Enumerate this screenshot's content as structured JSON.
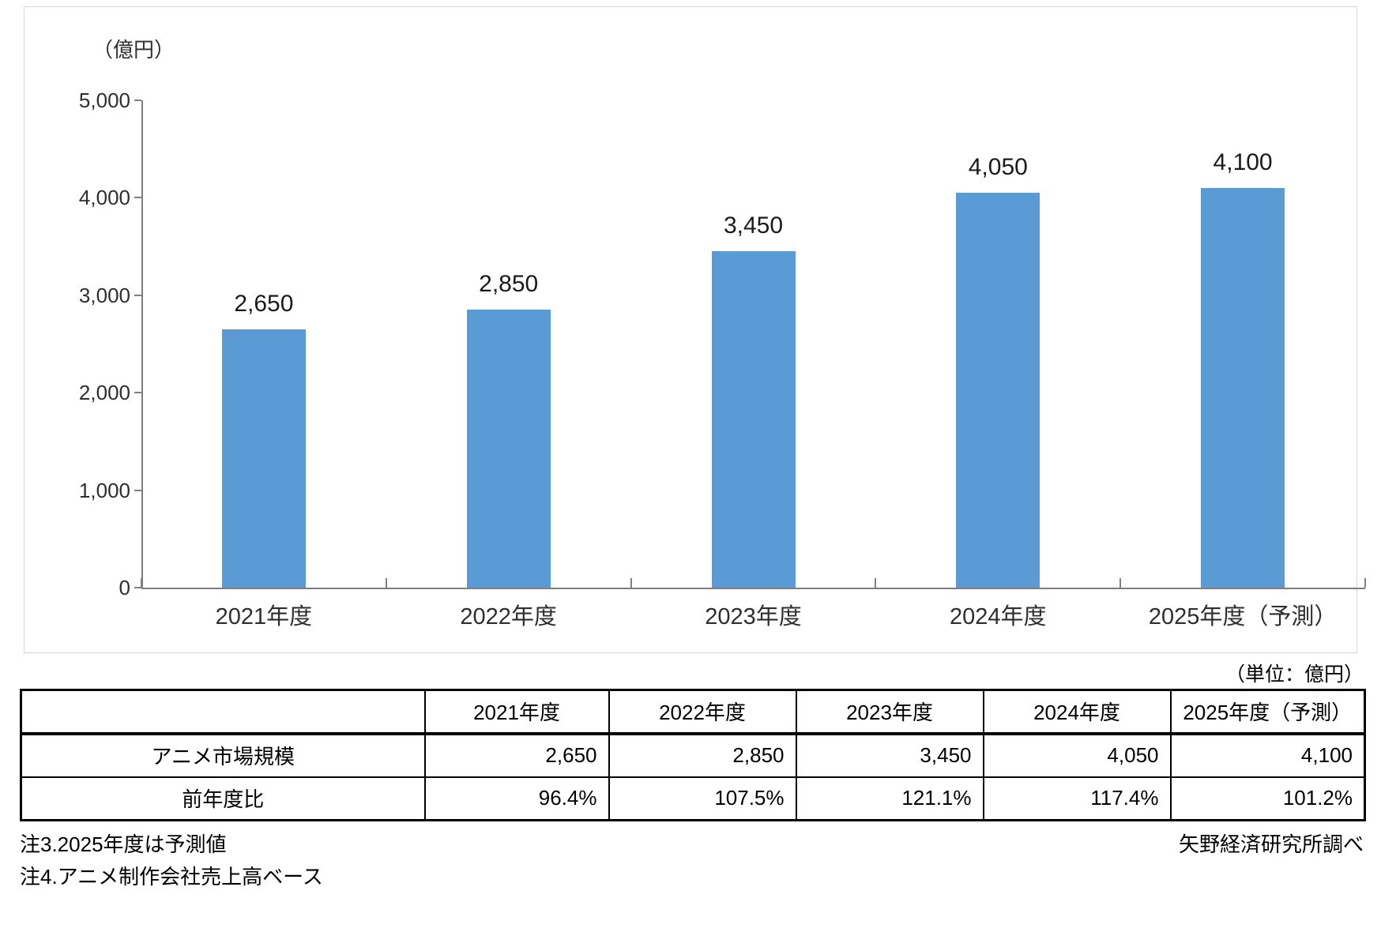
{
  "chart_data": {
    "type": "bar",
    "title": "",
    "unit_label": "（億円）",
    "categories": [
      "2021年度",
      "2022年度",
      "2023年度",
      "2024年度",
      "2025年度（予測）"
    ],
    "values": [
      2650,
      2850,
      3450,
      4050,
      4100
    ],
    "value_labels": [
      "2,650",
      "2,850",
      "3,450",
      "4,050",
      "4,100"
    ],
    "ylim": [
      0,
      5000
    ],
    "ytick_interval": 1000,
    "ytick_labels": [
      "0",
      "1,000",
      "2,000",
      "3,000",
      "4,000",
      "5,000"
    ],
    "grid": false,
    "legend": "none",
    "bar_color": "#5b9bd5",
    "axis_color": "#7f7f7f"
  },
  "table": {
    "unit_note": "（単位：億円）",
    "columns": [
      "",
      "2021年度",
      "2022年度",
      "2023年度",
      "2024年度",
      "2025年度（予測）"
    ],
    "rows": [
      {
        "label": "アニメ市場規模",
        "values": [
          "2,650",
          "2,850",
          "3,450",
          "4,050",
          "4,100"
        ]
      },
      {
        "label": "前年度比",
        "values": [
          "96.4%",
          "107.5%",
          "121.1%",
          "117.4%",
          "101.2%"
        ]
      }
    ]
  },
  "notes": {
    "note3": "注3.2025年度は予測値",
    "note4": "注4.アニメ制作会社売上高ベース",
    "source": "矢野経済研究所調べ"
  }
}
